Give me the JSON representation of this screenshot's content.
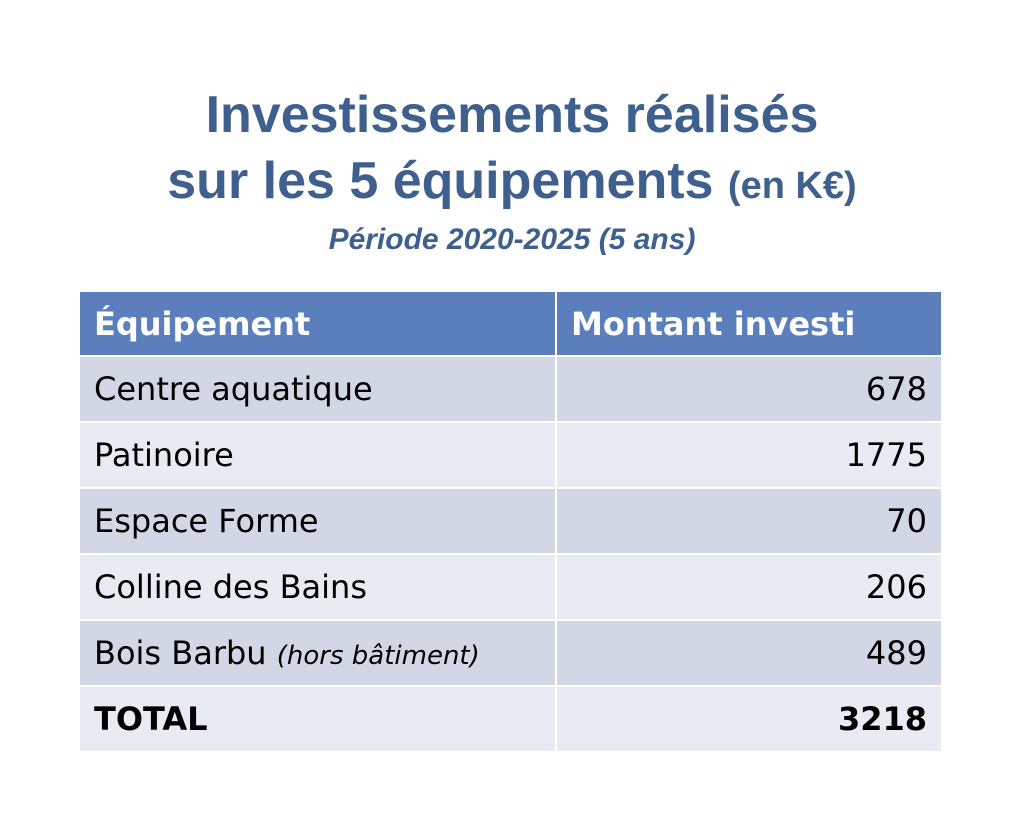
{
  "title": {
    "line1": "Investissements réalisés",
    "line2": "sur les 5 équipements",
    "unit": "(en K€)",
    "subtitle": "Période 2020-2025 (5 ans)"
  },
  "table": {
    "headers": [
      "Équipement",
      "Montant investi"
    ],
    "rows": [
      {
        "name": "Centre aquatique",
        "note": "",
        "value": "678"
      },
      {
        "name": "Patinoire",
        "note": "",
        "value": "1775"
      },
      {
        "name": "Espace Forme",
        "note": "",
        "value": "70"
      },
      {
        "name": "Colline des Bains",
        "note": "",
        "value": "206"
      },
      {
        "name": "Bois Barbu",
        "note": "(hors bâtiment)",
        "value": "489"
      }
    ],
    "total": {
      "name": "TOTAL",
      "value": "3218"
    }
  },
  "colors": {
    "title": "#3f5f8f",
    "header_bg": "#5b7fbc",
    "row_dark": "#d1d7e4",
    "row_light": "#e8ebf2"
  }
}
